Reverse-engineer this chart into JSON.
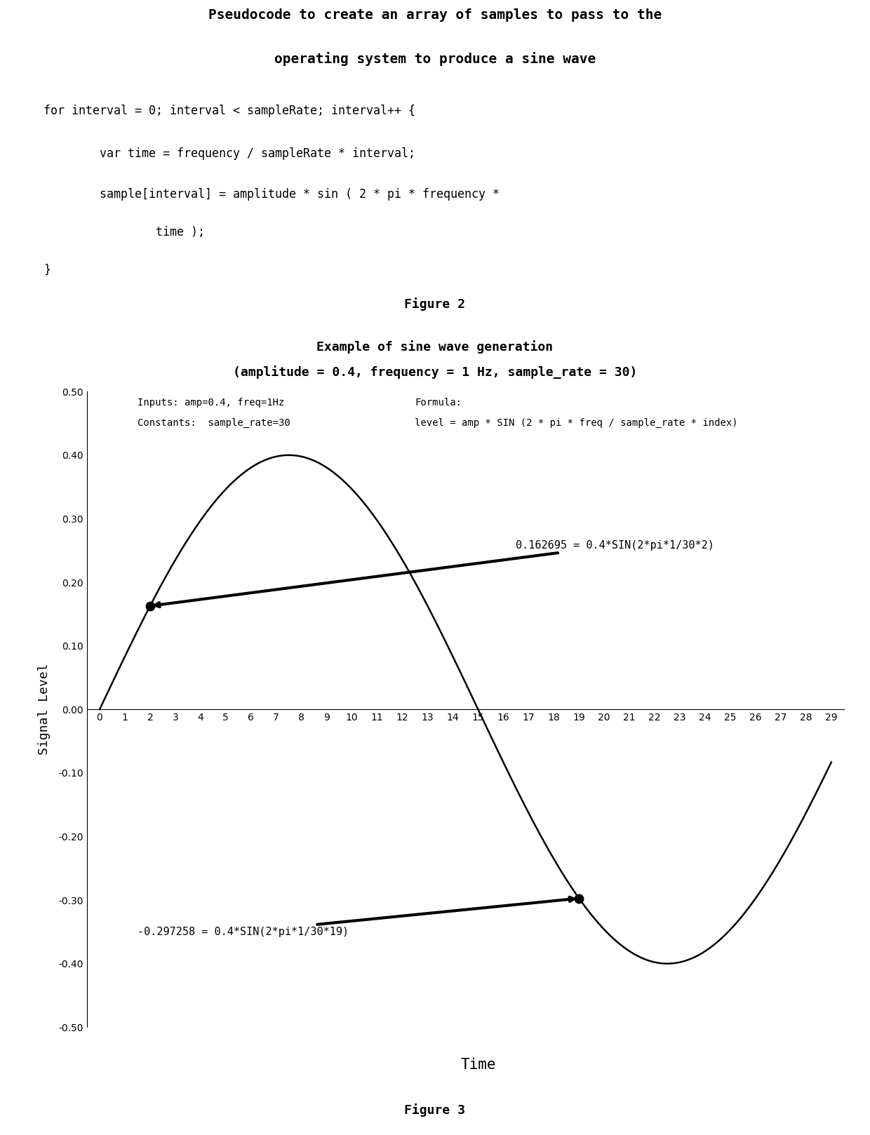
{
  "title1_line1": "Pseudocode to create an array of samples to pass to the",
  "title1_line2": "operating system to produce a sine wave",
  "code_line1": "for interval = 0; interval < sampleRate; interval++ {",
  "code_line2": "        var time = frequency / sampleRate * interval;",
  "code_line3": "        sample[interval] = amplitude * sin ( 2 * pi * frequency *",
  "code_line4": "                time );",
  "code_line5": "}",
  "fig2_label": "Figure 2",
  "chart_title_line1": "Example of sine wave generation",
  "chart_title_line2": "(amplitude = 0.4, frequency = 1 Hz, sample_rate = 30)",
  "amplitude": 0.4,
  "frequency": 1,
  "sample_rate": 30,
  "ylabel": "Signal Level",
  "xlabel": "Time",
  "fig3_label": "Figure 3",
  "ylim": [
    -0.5,
    0.5
  ],
  "yticks": [
    -0.5,
    -0.4,
    -0.3,
    -0.2,
    -0.1,
    0.0,
    0.1,
    0.2,
    0.3,
    0.4,
    0.5
  ],
  "annotation1_text": "0.162695 = 0.4*SIN(2*pi*1/30*2)",
  "annotation1_index": 2,
  "annotation2_text": "-0.297258 = 0.4*SIN(2*pi*1/30*19)",
  "annotation2_index": 19,
  "info_text1": "Inputs: amp=0.4, freq=1Hz",
  "info_text2": "Constants:  sample_rate=30",
  "formula_text1": "Formula:",
  "formula_text2": "level = amp * SIN (2 * pi * freq / sample_rate * index)",
  "bg_color": "#ffffff",
  "line_color": "#000000",
  "dot_color": "#000000"
}
